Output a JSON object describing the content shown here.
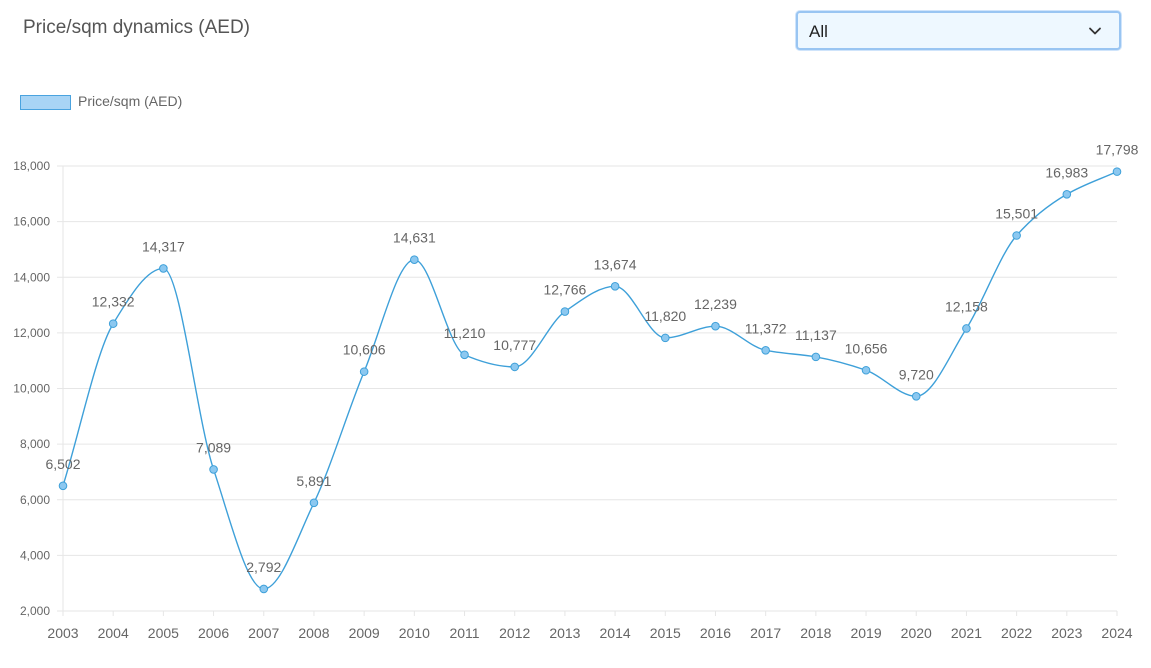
{
  "header": {
    "title": "Price/sqm dynamics (AED)"
  },
  "filter": {
    "selected": "All",
    "icon": "chevron-down-icon"
  },
  "legend": {
    "label": "Price/sqm (AED)"
  },
  "colors": {
    "line": "#3ea0d9",
    "point_fill": "#8cc8f0",
    "swatch_fill": "#a8d4f5",
    "grid": "#e6e6e6",
    "text": "#666666",
    "select_border": "#99c5f2",
    "select_bg": "#eef8ff"
  },
  "chart_data": {
    "type": "line",
    "title": "Price/sqm dynamics (AED)",
    "xlabel": "",
    "ylabel": "",
    "categories": [
      "2003",
      "2004",
      "2005",
      "2006",
      "2007",
      "2008",
      "2009",
      "2010",
      "2011",
      "2012",
      "2013",
      "2014",
      "2015",
      "2016",
      "2017",
      "2018",
      "2019",
      "2020",
      "2021",
      "2022",
      "2023",
      "2024"
    ],
    "series": [
      {
        "name": "Price/sqm (AED)",
        "values": [
          6502,
          12332,
          14317,
          7089,
          2792,
          5891,
          10606,
          14631,
          11210,
          10777,
          12766,
          13674,
          11820,
          12239,
          11372,
          11137,
          10656,
          9720,
          12158,
          15501,
          16983,
          17798
        ],
        "data_labels": [
          "6,502",
          "12,332",
          "14,317",
          "7,089",
          "2,792",
          "5,891",
          "10,606",
          "14,631",
          "11,210",
          "10,777",
          "12,766",
          "13,674",
          "11,820",
          "12,239",
          "11,372",
          "11,137",
          "10,656",
          "9,720",
          "12,158",
          "15,501",
          "16,983",
          "17,798"
        ]
      }
    ],
    "y_ticks": [
      2000,
      4000,
      6000,
      8000,
      10000,
      12000,
      14000,
      16000,
      18000
    ],
    "y_tick_labels": [
      "2,000",
      "4,000",
      "6,000",
      "8,000",
      "10,000",
      "12,000",
      "14,000",
      "16,000",
      "18,000"
    ],
    "ylim": [
      2000,
      18000
    ],
    "grid": true,
    "legend_position": "top-left",
    "smooth": true
  }
}
